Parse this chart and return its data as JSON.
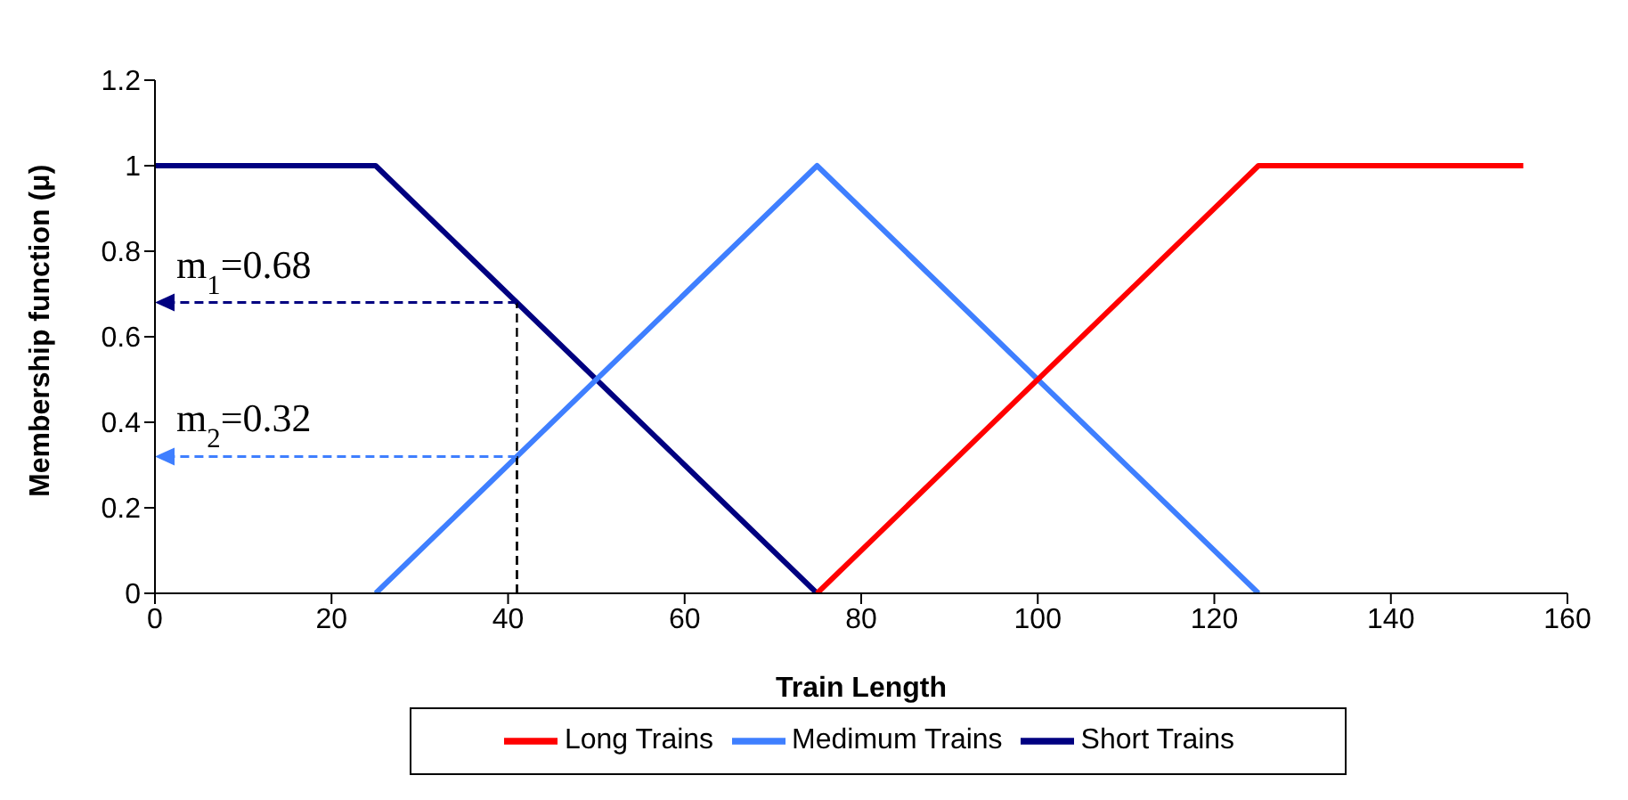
{
  "chart_data": {
    "type": "line",
    "xlabel": "Train Length",
    "ylabel": "Membership function (μ)",
    "xlim": [
      0,
      160
    ],
    "xticks": [
      0,
      20,
      40,
      60,
      80,
      100,
      120,
      140,
      160
    ],
    "ylim": [
      0,
      1.2
    ],
    "yticks": [
      0,
      0.2,
      0.4,
      0.6,
      0.8,
      1,
      1.2
    ],
    "series": [
      {
        "name": "Short Trains",
        "color": "#000080",
        "x": [
          0,
          25,
          75
        ],
        "values": [
          1,
          1,
          0
        ]
      },
      {
        "name": "Medimum Trains",
        "color": "#3f7fff",
        "x": [
          25,
          75,
          125
        ],
        "values": [
          0,
          1,
          0
        ]
      },
      {
        "name": "Long Trains",
        "color": "#ff0000",
        "x": [
          75,
          125,
          155
        ],
        "values": [
          0,
          1,
          1
        ]
      }
    ],
    "annotations": [
      {
        "text": "m$_{1}$=0.68",
        "x": 41,
        "y": 0.68
      },
      {
        "text": "m$_{2}$=0.32",
        "x": 41,
        "y": 0.32
      }
    ],
    "grid": false,
    "legend": "bottom",
    "marker": "none",
    "line_style": "solid"
  }
}
